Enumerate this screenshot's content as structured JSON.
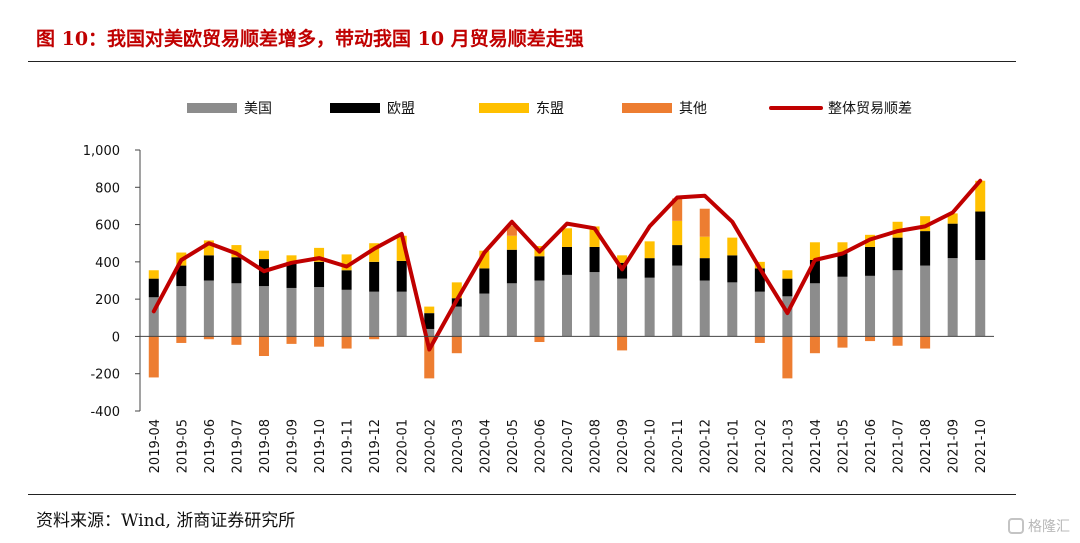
{
  "header": {
    "title": "图 10：我国对美欧贸易顺差增多，带动我国 10 月贸易顺差走强"
  },
  "footer": {
    "source": "资料来源：Wind, 浙商证券研究所",
    "watermark_text": "格隆汇",
    "watermark_icon": "gelonghui-logo-icon"
  },
  "chart_data": {
    "type": "bar",
    "stacked": true,
    "categories": [
      "2019-04",
      "2019-05",
      "2019-06",
      "2019-07",
      "2019-08",
      "2019-09",
      "2019-10",
      "2019-11",
      "2019-12",
      "2020-01",
      "2020-02",
      "2020-03",
      "2020-04",
      "2020-05",
      "2020-06",
      "2020-07",
      "2020-08",
      "2020-09",
      "2020-10",
      "2020-11",
      "2020-12",
      "2021-01",
      "2021-02",
      "2021-03",
      "2021-04",
      "2021-05",
      "2021-06",
      "2021-07",
      "2021-08",
      "2021-09",
      "2021-10"
    ],
    "yticks": [
      "1,000",
      "800",
      "600",
      "400",
      "200",
      "0",
      "-200",
      "-400"
    ],
    "ylim": [
      -400,
      1000
    ],
    "grid": false,
    "legend_position": "top",
    "series": [
      {
        "name": "美国",
        "color": "#8c8c8c",
        "values": [
          210,
          270,
          300,
          285,
          270,
          260,
          265,
          250,
          240,
          240,
          40,
          160,
          230,
          285,
          300,
          330,
          345,
          310,
          315,
          380,
          300,
          290,
          240,
          215,
          285,
          320,
          325,
          355,
          380,
          420,
          410
        ]
      },
      {
        "name": "欧盟",
        "color": "#000000",
        "values": [
          100,
          110,
          135,
          140,
          145,
          140,
          135,
          105,
          160,
          165,
          85,
          45,
          135,
          180,
          130,
          150,
          135,
          85,
          105,
          110,
          120,
          145,
          125,
          95,
          125,
          125,
          155,
          175,
          185,
          185,
          260
        ]
      },
      {
        "name": "东盟",
        "color": "#ffc000",
        "values": [
          45,
          70,
          80,
          65,
          45,
          35,
          75,
          85,
          100,
          135,
          35,
          85,
          95,
          75,
          55,
          100,
          110,
          40,
          90,
          130,
          115,
          95,
          35,
          45,
          95,
          60,
          65,
          85,
          80,
          55,
          165
        ]
      },
      {
        "name": "其他",
        "color": "#ed7d31",
        "values": [
          -220,
          -35,
          -15,
          -45,
          -105,
          -40,
          -55,
          -65,
          -15,
          0,
          -225,
          -90,
          0,
          55,
          -30,
          0,
          0,
          -75,
          0,
          120,
          150,
          0,
          -35,
          -225,
          -90,
          -60,
          -25,
          -50,
          -65,
          0,
          0
        ]
      },
      {
        "name": "整体贸易顺差",
        "type": "line",
        "color": "#c00000",
        "values": [
          135,
          410,
          500,
          445,
          350,
          395,
          420,
          375,
          470,
          550,
          -70,
          195,
          450,
          615,
          455,
          605,
          580,
          360,
          590,
          745,
          755,
          615,
          365,
          125,
          410,
          445,
          520,
          565,
          590,
          665,
          835
        ]
      }
    ]
  }
}
